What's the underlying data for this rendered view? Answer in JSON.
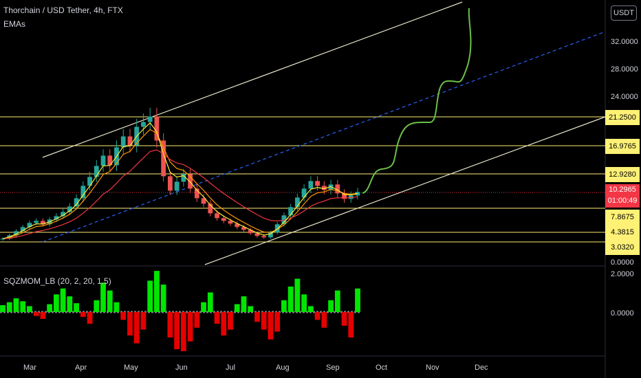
{
  "header": {
    "title": "Thorchain / USD Tether, 4h, FTX",
    "indicator": "EMAs",
    "currency_button": "USDT"
  },
  "oscillator": {
    "label": "SQZMOM_LB (20, 2, 20, 1.5)"
  },
  "price_axis_labels": [
    "32.0000",
    "28.0000",
    "24.0000",
    "0.0000"
  ],
  "osc_axis_labels": [
    "2.0000",
    "0.0000"
  ],
  "price_tags": [
    {
      "text": "21.2500",
      "bg": "#fff176"
    },
    {
      "text": "16.9765",
      "bg": "#fff176"
    },
    {
      "text": "12.9280",
      "bg": "#fff176"
    },
    {
      "text": "10.2965",
      "bg": "#f23645",
      "sub": "01:00:49"
    },
    {
      "text": "7.8675",
      "bg": "#fff176"
    },
    {
      "text": "4.3815",
      "bg": "#fff176"
    },
    {
      "text": "3.0320",
      "bg": "#fff176"
    }
  ],
  "time_labels": [
    "Mar",
    "Apr",
    "May",
    "Jun",
    "Jul",
    "Aug",
    "Sep",
    "Oct",
    "Nov",
    "Dec"
  ],
  "colors": {
    "background": "#000000",
    "up": "#26a69a",
    "down": "#ef5350",
    "level_line": "#fff176",
    "channel_line": "#e8e4c9",
    "midline": "#2962ff",
    "projection": "#6cc04a",
    "osc_up": "#00e600",
    "osc_down": "#e60000"
  },
  "chart_data": {
    "type": "candlestick",
    "ylim": [
      0,
      34
    ],
    "horizontal_levels": [
      21.25,
      16.9765,
      12.928,
      7.8675,
      4.3815,
      3.032
    ],
    "last_price": 10.2965,
    "closes_approx": [
      3.5,
      4.0,
      4.6,
      5.2,
      5.8,
      6.1,
      5.6,
      6.3,
      6.8,
      7.4,
      8.2,
      9.4,
      11.2,
      12.5,
      14.1,
      15.6,
      14.2,
      16.8,
      18.4,
      17.1,
      19.8,
      20.5,
      21.3,
      17.8,
      12.6,
      10.5,
      11.8,
      12.9,
      10.8,
      9.4,
      8.6,
      7.2,
      6.5,
      6.1,
      5.7,
      5.2,
      4.8,
      4.3,
      3.9,
      3.7,
      4.4,
      5.6,
      6.9,
      8.1,
      9.5,
      10.8,
      11.9,
      11.2,
      10.6,
      11.4,
      10.1,
      9.3,
      9.8,
      10.3
    ],
    "oscillator_values": [
      0.35,
      0.5,
      0.7,
      0.55,
      0.3,
      -0.2,
      -0.35,
      0.4,
      0.9,
      1.2,
      0.8,
      0.45,
      -0.25,
      -0.6,
      0.6,
      1.5,
      1.1,
      0.5,
      -0.4,
      -1.2,
      -1.6,
      -0.9,
      1.6,
      2.1,
      1.4,
      -1.3,
      -1.9,
      -2.0,
      -1.5,
      -0.8,
      0.5,
      1.0,
      -0.6,
      -1.2,
      -0.9,
      0.4,
      0.8,
      0.3,
      -0.5,
      -0.9,
      -1.4,
      -1.0,
      0.6,
      1.3,
      1.7,
      0.9,
      0.3,
      -0.4,
      -0.8,
      0.6,
      1.1,
      -0.7,
      -1.3,
      1.2
    ]
  }
}
